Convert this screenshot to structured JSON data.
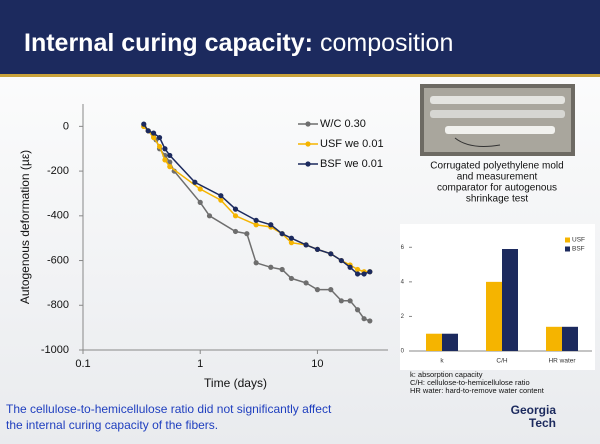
{
  "title": {
    "bold": "Internal curing capacity:",
    "normal": "composition"
  },
  "photo_caption": [
    "Corrugated polyethylene mold",
    "and measurement",
    "comparator for autogenous",
    "shrinkage test"
  ],
  "notes": [
    "k: absorption capacity",
    "C/H: cellulose-to-hemicellulose ratio",
    "HR water: hard-to-remove water content"
  ],
  "conclusion": [
    "The cellulose-to-hemicellulose ratio did not significantly affect",
    "the internal curing capacity of the fibers."
  ],
  "logo": [
    "Georgia",
    "Tech"
  ],
  "chart_data": [
    {
      "type": "line",
      "x_label": "Time (days)",
      "y_label": "Autogenous deformation (µε)",
      "log_x": true,
      "xlim": [
        0.1,
        40
      ],
      "xticks": [
        0.1,
        1,
        10
      ],
      "ylim": [
        -1000,
        100
      ],
      "yticks": [
        -1000,
        -800,
        -600,
        -400,
        -200,
        0
      ],
      "grid": false,
      "legend": "top-right",
      "series": [
        {
          "name": "W/C 0.30",
          "color": "#6e6e6e",
          "x": [
            0.33,
            0.36,
            0.4,
            0.42,
            0.45,
            0.5,
            0.55,
            0.6,
            1.0,
            1.2,
            2.0,
            2.5,
            3,
            4,
            5,
            6,
            8,
            10,
            13,
            16,
            19,
            22,
            25,
            28
          ],
          "values": [
            0,
            -20,
            -40,
            -60,
            -100,
            -130,
            -160,
            -200,
            -340,
            -400,
            -470,
            -480,
            -610,
            -630,
            -640,
            -680,
            -700,
            -730,
            -730,
            -780,
            -780,
            -820,
            -860,
            -870
          ]
        },
        {
          "name": "USF we 0.01",
          "color": "#f5b400",
          "x": [
            0.33,
            0.36,
            0.4,
            0.45,
            0.5,
            0.55,
            1.0,
            1.5,
            2.0,
            3,
            4,
            5,
            6,
            8,
            10,
            13,
            16,
            19,
            22,
            25,
            28
          ],
          "values": [
            0,
            -20,
            -50,
            -90,
            -150,
            -180,
            -280,
            -330,
            -400,
            -440,
            -450,
            -480,
            -520,
            -530,
            -550,
            -570,
            -600,
            -620,
            -640,
            -650,
            -650
          ]
        },
        {
          "name": "BSF we 0.01",
          "color": "#1c2a5e",
          "x": [
            0.33,
            0.36,
            0.4,
            0.45,
            0.5,
            0.55,
            0.9,
            1.5,
            2.0,
            3,
            4,
            5,
            6,
            8,
            10,
            13,
            16,
            19,
            22,
            25,
            28
          ],
          "values": [
            10,
            -20,
            -30,
            -50,
            -100,
            -130,
            -250,
            -310,
            -370,
            -420,
            -440,
            -480,
            -500,
            -530,
            -550,
            -570,
            -600,
            -630,
            -660,
            -660,
            -650
          ]
        }
      ]
    },
    {
      "type": "bar",
      "categories": [
        "k",
        "C/H",
        "HR water"
      ],
      "ylim": [
        0,
        7
      ],
      "yticks": [
        0,
        2,
        4,
        6
      ],
      "legend": "top-right",
      "series": [
        {
          "name": "USF",
          "color": "#f5b400",
          "values": [
            1,
            4,
            1.4
          ]
        },
        {
          "name": "BSF",
          "color": "#1c2a5e",
          "values": [
            1,
            5.9,
            1.4
          ]
        }
      ]
    }
  ]
}
